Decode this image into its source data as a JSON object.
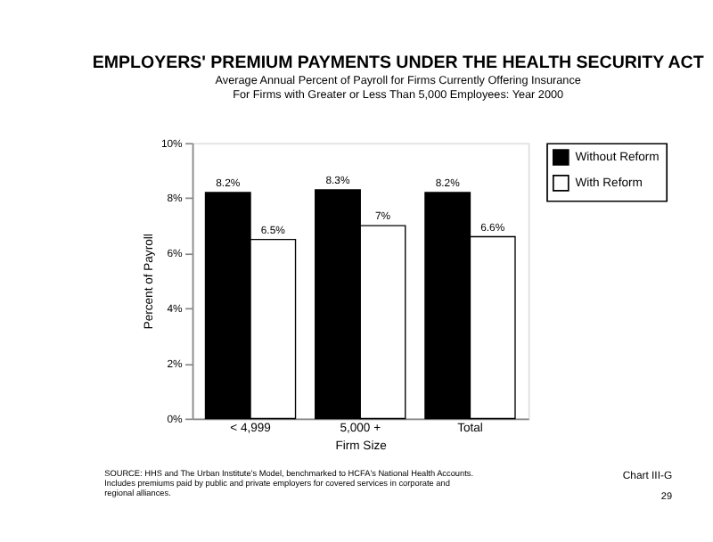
{
  "chart_data": {
    "type": "bar",
    "title": "EMPLOYERS' PREMIUM PAYMENTS UNDER THE HEALTH SECURITY ACT",
    "subtitle": "Average Annual Percent of Payroll for Firms Currently Offering Insurance\nFor Firms with Greater or Less Than 5,000 Employees:  Year 2000",
    "xlabel": "Firm Size",
    "ylabel": "Percent of Payroll",
    "categories": [
      "< 4,999",
      "5,000 +",
      "Total"
    ],
    "series": [
      {
        "name": "Without Reform",
        "color": "#000000",
        "values": [
          8.2,
          8.3,
          8.2
        ],
        "value_labels": [
          "8.2%",
          "8.3%",
          "8.2%"
        ]
      },
      {
        "name": "With Reform",
        "color": "#ffffff",
        "values": [
          6.5,
          7,
          6.6
        ],
        "value_labels": [
          "6.5%",
          "7%",
          "6.6%"
        ]
      }
    ],
    "ylim": [
      0,
      10
    ],
    "yticks": [
      {
        "value": 0,
        "label": "0%"
      },
      {
        "value": 2,
        "label": "2%"
      },
      {
        "value": 4,
        "label": "4%"
      },
      {
        "value": 6,
        "label": "6%"
      },
      {
        "value": 8,
        "label": "8%"
      },
      {
        "value": 10,
        "label": "10%"
      }
    ],
    "grid": false,
    "legend": "right",
    "annotations": [
      "SOURCE:  HHS and The Urban Institute's Model, benchmarked to HCFA's National Health Accounts.\nIncludes premiums paid by public and private employers for covered services in corporate and\n    regional alliances.",
      "Chart III-G",
      "29"
    ]
  }
}
